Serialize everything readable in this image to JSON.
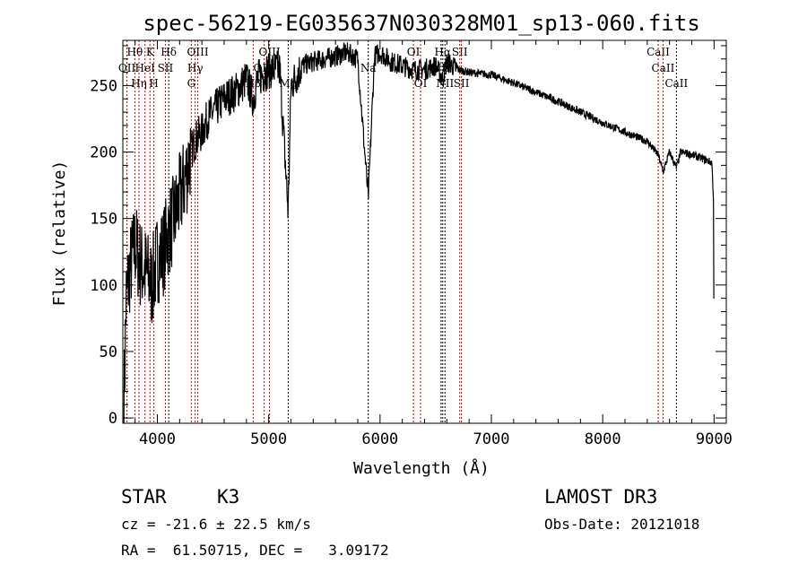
{
  "chart_data": {
    "type": "line",
    "title": "spec-56219-EG035637N030328M01_sp13-060.fits",
    "xlabel": "Wavelength (Å)",
    "ylabel": "Flux (relative)",
    "xlim": [
      3690,
      9110
    ],
    "ylim": [
      -4,
      284
    ],
    "xticks": [
      4000,
      5000,
      6000,
      7000,
      8000,
      9000
    ],
    "xtick_labels": [
      "4000",
      "5000",
      "6000",
      "7000",
      "8000",
      "9000"
    ],
    "yticks": [
      0,
      50,
      100,
      150,
      200,
      250
    ],
    "ytick_labels": [
      "0",
      "50",
      "100",
      "150",
      "200",
      "250"
    ],
    "grid": false,
    "series": [
      {
        "name": "spectrum",
        "color": "#000000",
        "x": [
          3700,
          3720,
          3750,
          3800,
          3850,
          3900,
          3950,
          4000,
          4050,
          4100,
          4150,
          4200,
          4250,
          4300,
          4350,
          4400,
          4450,
          4500,
          4600,
          4700,
          4800,
          4861,
          4900,
          5000,
          5100,
          5175,
          5200,
          5300,
          5400,
          5500,
          5600,
          5700,
          5800,
          5894,
          5950,
          6000,
          6100,
          6200,
          6300,
          6400,
          6500,
          6563,
          6600,
          6700,
          6800,
          7000,
          7200,
          7400,
          7600,
          7800,
          8000,
          8200,
          8400,
          8498,
          8542,
          8600,
          8662,
          8700,
          8800,
          8900,
          8980,
          8995,
          9000
        ],
        "y": [
          10,
          90,
          110,
          130,
          115,
          110,
          100,
          120,
          125,
          140,
          150,
          165,
          180,
          200,
          210,
          215,
          225,
          230,
          240,
          245,
          255,
          240,
          255,
          262,
          262,
          155,
          250,
          265,
          268,
          270,
          272,
          275,
          270,
          165,
          272,
          275,
          268,
          265,
          262,
          262,
          265,
          255,
          268,
          262,
          260,
          258,
          252,
          245,
          238,
          230,
          222,
          215,
          208,
          198,
          185,
          200,
          188,
          200,
          198,
          195,
          192,
          165,
          40
        ]
      }
    ],
    "lines": [
      {
        "label": "OII",
        "wave": 3727,
        "row": 2,
        "color": "#cc0000"
      },
      {
        "label": "Hθ",
        "wave": 3798,
        "row": 1,
        "color": "#cc0000"
      },
      {
        "label": "Hη",
        "wave": 3835,
        "row": 3,
        "color": "#cc0000"
      },
      {
        "label": "HeI",
        "wave": 3889,
        "row": 2,
        "color": "#cc0000"
      },
      {
        "label": "K",
        "wave": 3934,
        "row": 1,
        "color": "#cc0000"
      },
      {
        "label": "H",
        "wave": 3969,
        "row": 3,
        "color": "#cc0000"
      },
      {
        "label": "SII",
        "wave": 4072,
        "row": 2,
        "color": "#cc0000"
      },
      {
        "label": "Hδ",
        "wave": 4102,
        "row": 1,
        "color": "#000000"
      },
      {
        "label": "G",
        "wave": 4305,
        "row": 3,
        "color": "#cc0000"
      },
      {
        "label": "Hγ",
        "wave": 4340,
        "row": 2,
        "color": "#cc0000"
      },
      {
        "label": "OIII",
        "wave": 4363,
        "row": 1,
        "color": "#cc0000"
      },
      {
        "label": "Hβ",
        "wave": 4861,
        "row": 3,
        "color": "#cc0000"
      },
      {
        "label": "OIII",
        "wave": 4959,
        "row": 2,
        "color": "#cc0000"
      },
      {
        "label": "OIII",
        "wave": 5007,
        "row": 1,
        "color": "#cc0000"
      },
      {
        "label": "Mg",
        "wave": 5175,
        "row": 3,
        "color": "#000000"
      },
      {
        "label": "Na",
        "wave": 5894,
        "row": 2,
        "color": "#000000"
      },
      {
        "label": "OI",
        "wave": 6300,
        "row": 1,
        "color": "#cc0000"
      },
      {
        "label": "OI",
        "wave": 6364,
        "row": 3,
        "color": "#cc0000"
      },
      {
        "label": "NII",
        "wave": 6548,
        "row": 2,
        "color": "#000000"
      },
      {
        "label": "Hα",
        "wave": 6563,
        "row": 1,
        "color": "#000000"
      },
      {
        "label": "NII",
        "wave": 6583,
        "row": 3,
        "color": "#000000"
      },
      {
        "label": "SII",
        "wave": 6716,
        "row": 1,
        "color": "#cc0000"
      },
      {
        "label": "SII",
        "wave": 6731,
        "row": 3,
        "color": "#cc0000"
      },
      {
        "label": "CaII",
        "wave": 8498,
        "row": 1,
        "color": "#cc0000"
      },
      {
        "label": "CaII",
        "wave": 8542,
        "row": 2,
        "color": "#cc0000"
      },
      {
        "label": "CaII",
        "wave": 8662,
        "row": 3,
        "color": "#000000"
      }
    ]
  },
  "info": {
    "class": "STAR",
    "subclass": "K3",
    "survey": "LAMOST DR3",
    "cz": "cz = -21.6 ± 22.5 km/s",
    "obs_date": "Obs-Date: 20121018",
    "coords": "RA =  61.50715, DEC =   3.09172"
  }
}
